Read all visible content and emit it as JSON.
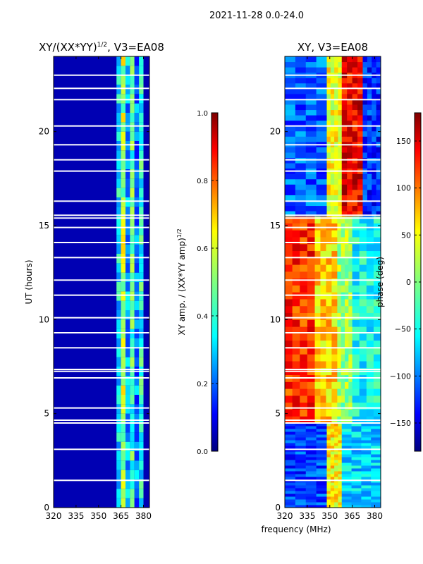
{
  "figure": {
    "suptitle": "2021-11-28 0.0-24.0",
    "xlabel": "frequency (MHz)"
  },
  "chart_data": [
    {
      "type": "heatmap",
      "title": "XY/(XX*YY)",
      "title_sup": "1/2",
      "title_suffix": ", V3=EA08",
      "xlabel": "",
      "ylabel": "UT (hours)",
      "xlim": [
        320,
        384
      ],
      "ylim": [
        0,
        24
      ],
      "x_ticks": [
        320,
        335,
        350,
        365,
        380
      ],
      "y_ticks": [
        0,
        5,
        10,
        15,
        20
      ],
      "colormap": "jet",
      "colorbar": {
        "label": "XY amp. / (XX*YY amp)",
        "label_sup": "1/2",
        "range": [
          0.0,
          1.0
        ],
        "ticks": [
          "0.0",
          "0.2",
          "0.4",
          "0.6",
          "0.8",
          "1.0"
        ]
      },
      "background_value": 0.05,
      "bands": [
        {
          "x0": 362,
          "x1": 365,
          "value": 0.35
        },
        {
          "x0": 365,
          "x1": 368,
          "value": 0.55
        },
        {
          "x0": 368,
          "x1": 371,
          "value": 0.3
        },
        {
          "x0": 371,
          "x1": 374,
          "value": 0.45
        },
        {
          "x0": 374,
          "x1": 377,
          "value": 0.25
        },
        {
          "x0": 377,
          "x1": 380,
          "value": 0.4
        }
      ],
      "gaps_hours": [
        1.45,
        3.1,
        4.5,
        4.65,
        5.3,
        6.9,
        7.25,
        7.35,
        8.5,
        9.3,
        10.1,
        11.3,
        12.1,
        13.3,
        14.1,
        14.9,
        15.4,
        15.55,
        16.3,
        17.9,
        18.5,
        19.3,
        20.3,
        21.7,
        22.3,
        23.0
      ]
    },
    {
      "type": "heatmap",
      "title": "XY, V3=EA08",
      "xlabel": "",
      "ylabel": "",
      "xlim": [
        320,
        384
      ],
      "ylim": [
        0,
        24
      ],
      "x_ticks": [
        320,
        335,
        350,
        365,
        380
      ],
      "y_ticks": [
        0,
        5,
        10,
        15,
        20
      ],
      "colormap": "jet",
      "colorbar": {
        "label": "phase (deg)",
        "range": [
          -180,
          180
        ],
        "ticks": [
          "−150",
          "−100",
          "−50",
          "0",
          "50",
          "100",
          "150"
        ],
        "tick_values": [
          -150,
          -100,
          -50,
          0,
          50,
          100,
          150
        ]
      },
      "regions": [
        {
          "x0": 320,
          "x1": 348,
          "y0": 0,
          "y1": 4.5,
          "value": -110
        },
        {
          "x0": 348,
          "x1": 358,
          "y0": 0,
          "y1": 4.5,
          "value": 50
        },
        {
          "x0": 358,
          "x1": 384,
          "y0": 0,
          "y1": 4.5,
          "value": -60
        },
        {
          "x0": 320,
          "x1": 340,
          "y0": 4.5,
          "y1": 15.5,
          "value": 120
        },
        {
          "x0": 340,
          "x1": 355,
          "y0": 4.5,
          "y1": 15.5,
          "value": 60
        },
        {
          "x0": 355,
          "x1": 365,
          "y0": 4.5,
          "y1": 15.5,
          "value": 10
        },
        {
          "x0": 365,
          "x1": 384,
          "y0": 4.5,
          "y1": 15.5,
          "value": -40
        },
        {
          "x0": 320,
          "x1": 348,
          "y0": 15.5,
          "y1": 24,
          "value": -100
        },
        {
          "x0": 348,
          "x1": 358,
          "y0": 15.5,
          "y1": 24,
          "value": 40
        },
        {
          "x0": 358,
          "x1": 372,
          "y0": 15.5,
          "y1": 24,
          "value": 140
        },
        {
          "x0": 372,
          "x1": 384,
          "y0": 15.5,
          "y1": 24,
          "value": -120
        }
      ],
      "gaps_hours": [
        1.45,
        3.1,
        4.5,
        4.65,
        5.3,
        6.9,
        7.25,
        7.35,
        8.5,
        9.3,
        10.1,
        11.3,
        12.1,
        13.3,
        14.1,
        14.9,
        15.4,
        15.55,
        16.3,
        17.9,
        18.5,
        19.3,
        20.3,
        21.7,
        22.3,
        23.0
      ]
    }
  ]
}
